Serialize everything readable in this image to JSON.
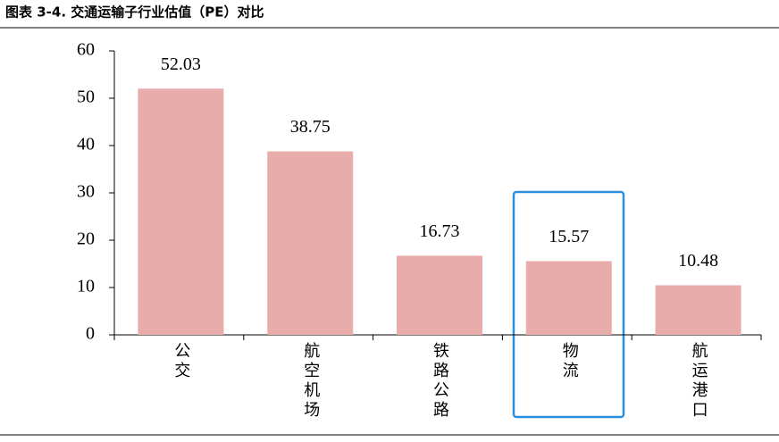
{
  "chart_data": {
    "type": "bar",
    "title": "图表 3-4. 交通运输子行业估值（PE）对比",
    "categories": [
      "公交",
      "航空机场",
      "铁路公路",
      "物流",
      "航运港口"
    ],
    "values": [
      52.03,
      38.75,
      16.73,
      15.57,
      10.48
    ],
    "color": "#e8adab",
    "ylim": [
      0,
      60
    ],
    "yticks": [
      0,
      10,
      20,
      30,
      40,
      50,
      60
    ],
    "grid": false
  }
}
